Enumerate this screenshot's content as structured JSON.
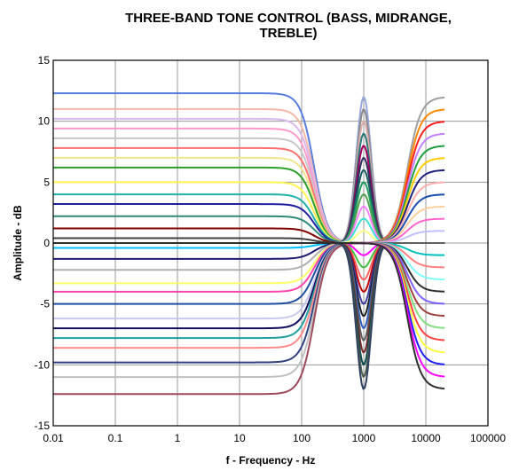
{
  "chart_data": {
    "type": "line",
    "title_lines": [
      "THREE-BAND TONE CONTROL (BASS, MIDRANGE,",
      "TREBLE)"
    ],
    "xlabel": "f - Frequency - Hz",
    "ylabel": "Amplitude - dB",
    "x_scale": "log",
    "xlim": [
      0.01,
      100000
    ],
    "ylim": [
      -15,
      15
    ],
    "x_ticks": [
      0.01,
      0.1,
      1,
      10,
      100,
      1000,
      10000,
      100000
    ],
    "x_tick_labels": [
      "0.01",
      "0.1",
      "1",
      "10",
      "100",
      "1000",
      "10000",
      "100000"
    ],
    "y_ticks": [
      -15,
      -10,
      -5,
      0,
      5,
      10,
      15
    ],
    "y_tick_labels": [
      "-15",
      "-10",
      "-5",
      "0",
      "5",
      "10",
      "15"
    ],
    "grid": true,
    "legend": "none",
    "x_max_data": 20000,
    "bands": [
      {
        "name": "bass",
        "center_hz": 1,
        "shape": "lowshelf",
        "corner_hz": 160,
        "gains_db": [
          12.3,
          11.0,
          10.2,
          9.4,
          8.6,
          7.8,
          7.0,
          6.2,
          5.0,
          4.0,
          3.2,
          2.2,
          1.2,
          0.4,
          -0.4,
          -1.3,
          -2.2,
          -3.3,
          -4.0,
          -5.0,
          -6.2,
          -7.0,
          -7.8,
          -8.6,
          -9.8,
          -11.0,
          -12.4
        ],
        "colors": [
          "#5a7ee0",
          "#f2b8a8",
          "#d9b8f0",
          "#ff99cc",
          "#c8c8c8",
          "#ff7070",
          "#f0e68c",
          "#2ca02c",
          "#fff44f",
          "#20b2aa",
          "#2020a0",
          "#2e8b7a",
          "#800000",
          "#404040",
          "#00bfff",
          "#1a1a6e",
          "#b0b0b0",
          "#ffff66",
          "#ff44aa",
          "#1f4fa0",
          "#c8c8f0",
          "#101060",
          "#20a0a0",
          "#ff8c8c",
          "#304080",
          "#c0c0c0",
          "#9e4a5a"
        ]
      },
      {
        "name": "midrange",
        "center_hz": 1000,
        "shape": "peak",
        "gains_db": [
          12.0,
          11.0,
          10.0,
          9.0,
          8.0,
          7.0,
          6.0,
          5.0,
          4.0,
          3.0,
          2.0,
          1.0,
          0.0,
          -1.0,
          -2.0,
          -3.0,
          -4.0,
          -5.0,
          -6.0,
          -7.0,
          -8.0,
          -9.0,
          -10.0,
          -11.0,
          -12.0
        ],
        "colors": [
          "#9aa8e0",
          "#8a8a8a",
          "#e0b0b0",
          "#2a7a7a",
          "#a00060",
          "#303060",
          "#1a6060",
          "#20a060",
          "#50a050",
          "#ff80ff",
          "#40e0d0",
          "#ffff88",
          "#ffb0ff",
          "#ff00ff",
          "#40c040",
          "#ff6060",
          "#c00000",
          "#4040a0",
          "#202020",
          "#3060c0",
          "#606060",
          "#7a2a2a",
          "#0a4a4a",
          "#506050",
          "#304060"
        ]
      },
      {
        "name": "treble",
        "center_hz": 20000,
        "shape": "highshelf",
        "corner_hz": 5000,
        "gains_db": [
          12.0,
          11.0,
          10.0,
          9.0,
          8.0,
          7.0,
          6.0,
          5.0,
          4.0,
          3.0,
          2.0,
          1.0,
          0.0,
          -1.0,
          -2.0,
          -3.0,
          -4.0,
          -5.0,
          -6.0,
          -7.0,
          -8.0,
          -9.0,
          -10.0,
          -11.0,
          -12.0
        ],
        "colors": [
          "#a0a0a0",
          "#ff8800",
          "#ff2020",
          "#c080ff",
          "#20a040",
          "#ffcc00",
          "#202080",
          "#ffb0b0",
          "#1a4fb0",
          "#ffd0a0",
          "#ff66cc",
          "#c0c0ff",
          "#606060",
          "#00c0c0",
          "#ff8080",
          "#80ffff",
          "#303030",
          "#8060ff",
          "#a04040",
          "#80e080",
          "#ff4040",
          "#ffff40",
          "#2020ff",
          "#ff00ff",
          "#303030"
        ]
      }
    ]
  }
}
